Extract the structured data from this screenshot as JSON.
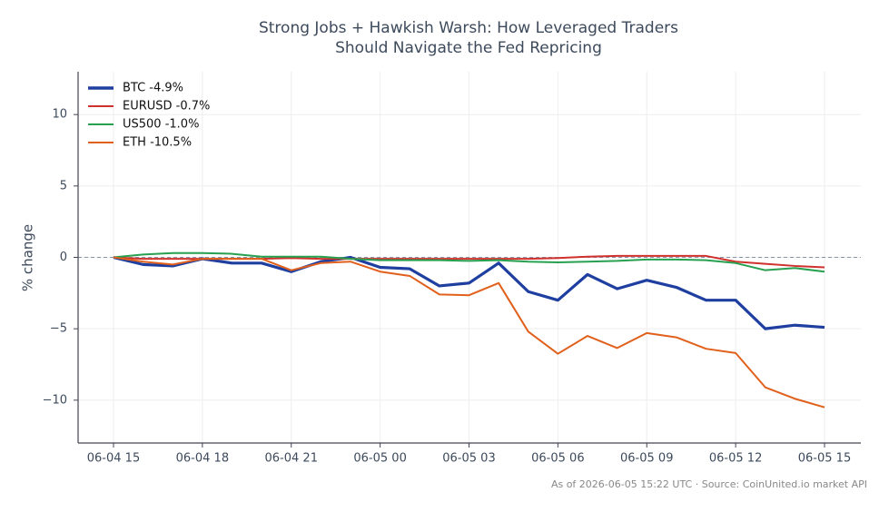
{
  "chart_data": {
    "type": "line",
    "title": "Strong Jobs + Hawkish Warsh: How Leveraged Traders Should Navigate the Fed Repricing",
    "y_label": "% change",
    "footer": "As of 2026-06-05 15:22 UTC · Source: CoinUnited.io market API",
    "categories": [
      "06-04 15",
      null,
      null,
      "06-04 18",
      null,
      null,
      "06-04 21",
      null,
      null,
      "06-05 00",
      null,
      null,
      "06-05 03",
      null,
      null,
      "06-05 06",
      null,
      null,
      "06-05 09",
      null,
      null,
      "06-05 12",
      null,
      null,
      "06-05 15"
    ],
    "ylim": [
      -13,
      13
    ],
    "yticks": [
      {
        "value": -10,
        "label": "−10"
      },
      {
        "value": -5,
        "label": "−5"
      },
      0,
      5,
      10
    ],
    "grid": true,
    "legend": "upper-left",
    "series": [
      {
        "name": "BTC -4.9%",
        "color": "#1f3fa0",
        "values": [
          0,
          -0.5,
          -0.6,
          -0.1,
          -0.4,
          -0.4,
          -1.0,
          -0.3,
          0.0,
          -0.7,
          -0.8,
          -2.0,
          -1.8,
          -0.4,
          -2.4,
          -3.0,
          -1.2,
          -2.2,
          -1.6,
          -2.1,
          -3.0,
          -3.0,
          -5.0,
          -4.75,
          -4.9
        ]
      },
      {
        "name": "EURUSD -0.7%",
        "color": "#d0312d",
        "values": [
          0,
          -0.1,
          -0.1,
          -0.1,
          -0.1,
          -0.1,
          -0.05,
          -0.1,
          -0.1,
          -0.1,
          -0.1,
          -0.1,
          -0.1,
          -0.1,
          -0.1,
          -0.05,
          0.05,
          0.1,
          0.1,
          0.1,
          0.1,
          -0.3,
          -0.45,
          -0.6,
          -0.7
        ]
      },
      {
        "name": "US500 -1.0%",
        "color": "#27a050",
        "values": [
          0,
          0.2,
          0.3,
          0.3,
          0.25,
          0.05,
          0.05,
          0.05,
          -0.1,
          -0.2,
          -0.2,
          -0.2,
          -0.25,
          -0.2,
          -0.3,
          -0.35,
          -0.3,
          -0.25,
          -0.15,
          -0.15,
          -0.2,
          -0.4,
          -0.9,
          -0.75,
          -1.0
        ]
      },
      {
        "name": "ETH -10.5%",
        "color": "#e0601c",
        "values": [
          0,
          -0.3,
          -0.5,
          -0.1,
          -0.1,
          -0.1,
          -0.9,
          -0.4,
          -0.3,
          -1.0,
          -1.3,
          -2.6,
          -2.65,
          -1.8,
          -5.2,
          -6.75,
          -5.5,
          -6.35,
          -5.3,
          -5.6,
          -6.4,
          -6.7,
          -9.1,
          -9.9,
          -10.5
        ]
      }
    ]
  }
}
